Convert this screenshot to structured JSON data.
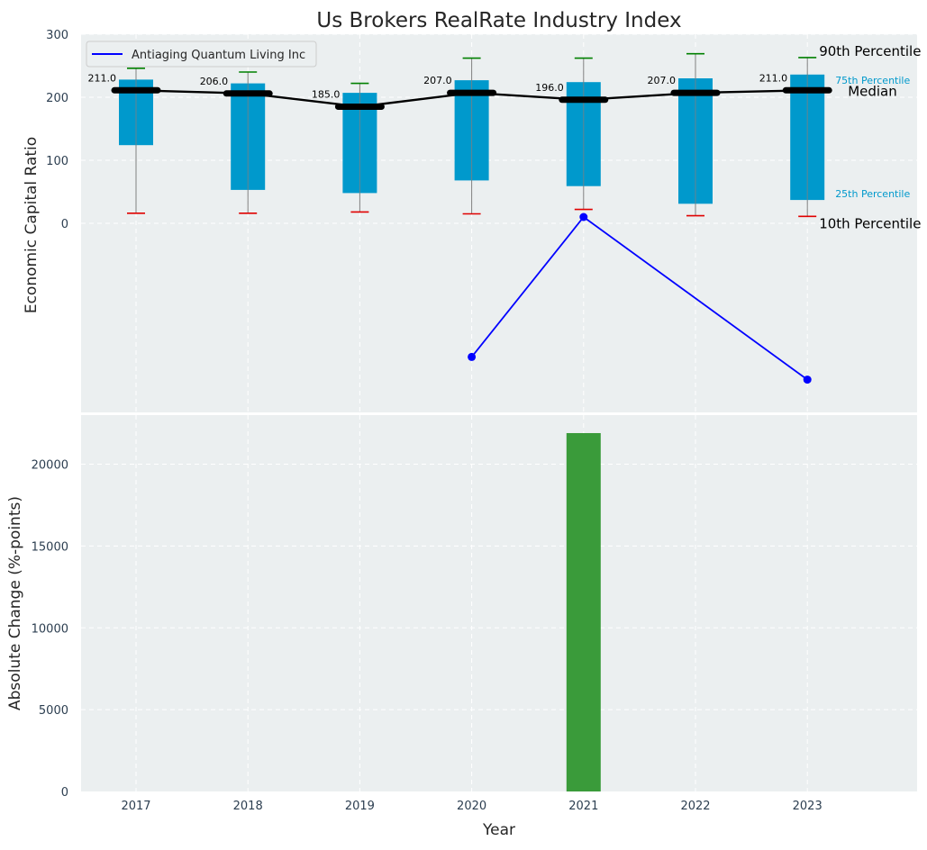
{
  "chart_data": [
    {
      "type": "box",
      "title": "Us Brokers RealRate Industry Index",
      "ylabel": "Economic Capital Ratio",
      "ylim": [
        -300,
        300
      ],
      "yticks": [
        0,
        100,
        200,
        300
      ],
      "grid": true,
      "legend": {
        "position": "top-left",
        "entries": [
          "Antiaging Quantum Living Inc"
        ]
      },
      "categories": [
        "2017",
        "2018",
        "2019",
        "2020",
        "2021",
        "2022",
        "2023"
      ],
      "p10": [
        16,
        16,
        18,
        15,
        22,
        12,
        11
      ],
      "p25": [
        124,
        53,
        48,
        68,
        59,
        31,
        37
      ],
      "median": [
        211,
        206,
        185,
        207,
        196,
        207,
        211
      ],
      "p75": [
        228,
        222,
        207,
        227,
        224,
        230,
        236
      ],
      "p90": [
        246,
        240,
        222,
        262,
        262,
        269,
        263
      ],
      "median_labels": [
        "211.0",
        "206.0",
        "185.0",
        "207.0",
        "196.0",
        "207.0",
        "211.0"
      ],
      "percentile_annotations": {
        "p90": "90th Percentile",
        "p75": "75th Percentile",
        "median": "Median",
        "p25": "25th Percentile",
        "p10": "10th Percentile"
      },
      "series": [
        {
          "name": "Antiaging Quantum Living Inc",
          "x": [
            "2020",
            "2021",
            "2023"
          ],
          "values": [
            -212,
            10,
            -248
          ],
          "color": "#0000ff"
        }
      ],
      "colors": {
        "box": "#0099cc",
        "median": "#000000",
        "p90_cap": "#008000",
        "p10_cap": "#e00000",
        "whisker": "#808080"
      }
    },
    {
      "type": "bar",
      "xlabel": "Year",
      "ylabel": "Absolute Change (%-points)",
      "ylim": [
        0,
        23000
      ],
      "yticks": [
        0,
        5000,
        10000,
        15000,
        20000
      ],
      "grid": true,
      "categories": [
        "2017",
        "2018",
        "2019",
        "2020",
        "2021",
        "2022",
        "2023"
      ],
      "values": [
        0,
        0,
        0,
        0,
        21900,
        0,
        0
      ],
      "color": "#3a9b3a"
    }
  ]
}
